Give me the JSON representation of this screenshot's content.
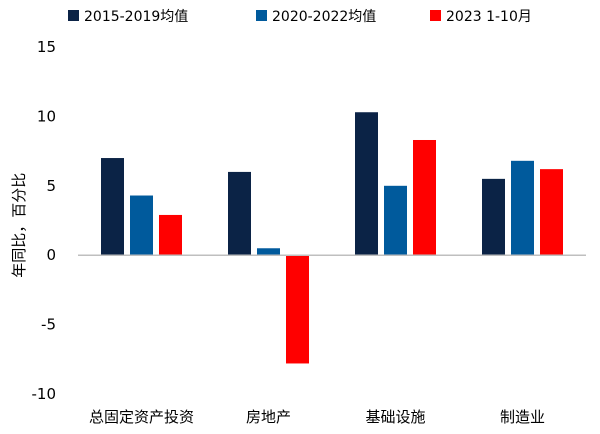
{
  "chart_data": {
    "type": "bar",
    "ylabel": "年同比，百分比",
    "ylim": [
      -10,
      15
    ],
    "yticks": [
      -10,
      -5,
      0,
      5,
      10,
      15
    ],
    "ytick_labels": [
      "-10",
      "-5",
      "0",
      "5",
      "10",
      "15"
    ],
    "categories": [
      "总固定资产投资",
      "房地产",
      "基础设施",
      "制造业"
    ],
    "series": [
      {
        "name": "2015-2019均值",
        "color": "#0b2346",
        "values": [
          7.0,
          6.0,
          10.3,
          5.5
        ]
      },
      {
        "name": "2020-2022均值",
        "color": "#005a9c",
        "values": [
          4.3,
          0.5,
          5.0,
          6.8
        ]
      },
      {
        "name": "2023 1-10月",
        "color": "#ff0000",
        "values": [
          2.9,
          -7.8,
          8.3,
          6.2
        ]
      }
    ],
    "grid": false,
    "legend_position": "top"
  }
}
